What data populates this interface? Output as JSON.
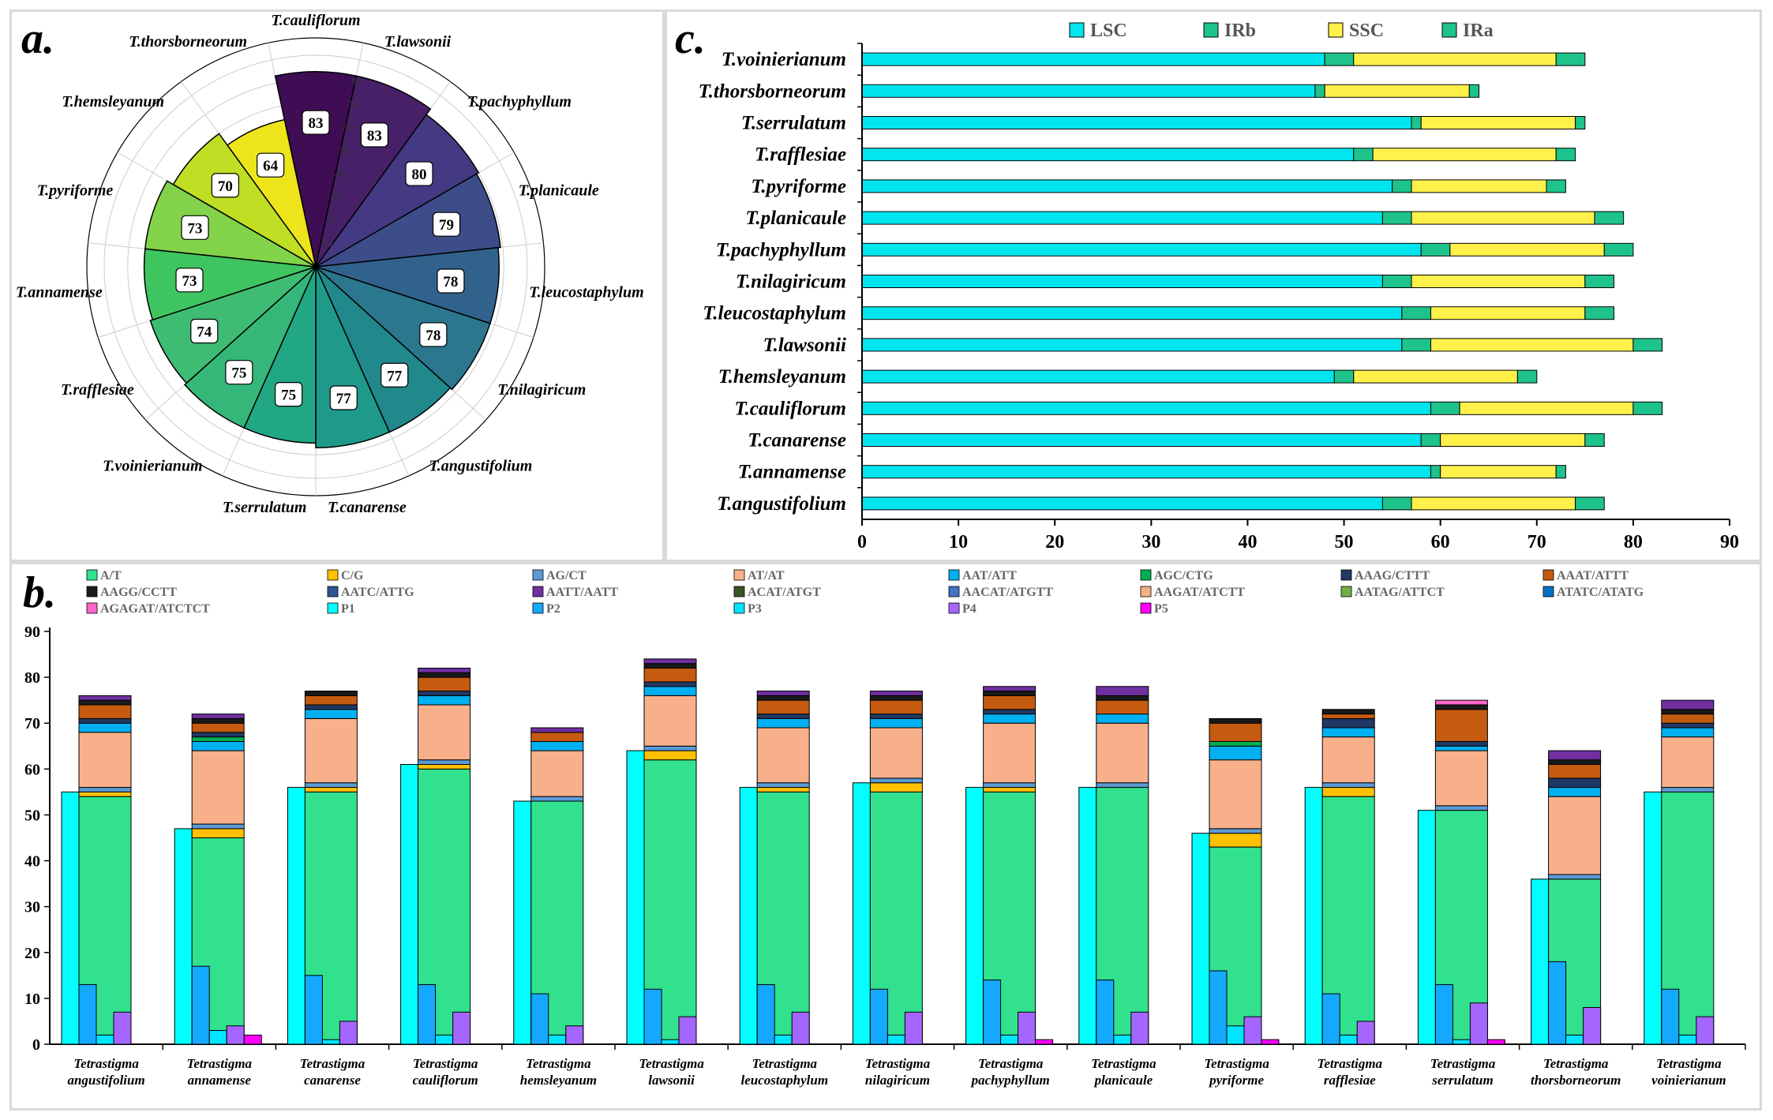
{
  "panel_labels": {
    "a": "a.",
    "b": "b.",
    "c": "c."
  },
  "chart_data": [
    {
      "id": "a",
      "type": "polar-bar",
      "title": "",
      "rlim": [
        0,
        90
      ],
      "radial_ticks": [
        "10",
        "20",
        "30",
        "40",
        "50",
        "60",
        "70",
        "80"
      ],
      "categories": [
        "T.cauliflorum",
        "T.lawsonii",
        "T.pachyphyllum",
        "T.planicaule",
        "T.leucostaphylum",
        "T.nilagiricum",
        "T.angustifolium",
        "T.canarense",
        "T.serrulatum",
        "T.voinierianum",
        "T.rafflesiae",
        "T.annamense",
        "T.pyriforme",
        "T.hemsleyanum",
        "T.thorsborneorum"
      ],
      "values": [
        83,
        83,
        80,
        79,
        78,
        78,
        77,
        77,
        75,
        75,
        74,
        73,
        73,
        70,
        64
      ],
      "colors": [
        "#3f0d54",
        "#462168",
        "#443a83",
        "#3d4d89",
        "#31628c",
        "#2a778e",
        "#21898c",
        "#1f9a8a",
        "#22a785",
        "#35b779",
        "#3fbc73",
        "#3fc560",
        "#82d34a",
        "#c0de24",
        "#ede41c"
      ]
    },
    {
      "id": "b",
      "type": "bar",
      "stacked_middle": true,
      "ylim": [
        0,
        90
      ],
      "yticks": [
        "0",
        "10",
        "20",
        "30",
        "40",
        "50",
        "60",
        "70",
        "80",
        "90"
      ],
      "categories": [
        [
          "Tetrastigma",
          "angustifolium"
        ],
        [
          "Tetrastigma",
          "annamense"
        ],
        [
          "Tetrastigma",
          "canarense"
        ],
        [
          "Tetrastigma",
          "cauliflorum"
        ],
        [
          "Tetrastigma",
          "hemsleyanum"
        ],
        [
          "Tetrastigma",
          "lawsonii"
        ],
        [
          "Tetrastigma",
          "leucostaphylum"
        ],
        [
          "Tetrastigma",
          "nilagiricum"
        ],
        [
          "Tetrastigma",
          "pachyphyllum"
        ],
        [
          "Tetrastigma",
          "planicaule"
        ],
        [
          "Tetrastigma",
          "pyriforme"
        ],
        [
          "Tetrastigma",
          "rafflesiae"
        ],
        [
          "Tetrastigma",
          "serrulatum"
        ],
        [
          "Tetrastigma",
          "thorsborneorum"
        ],
        [
          "Tetrastigma",
          "voinierianum"
        ]
      ],
      "stack_series": [
        {
          "name": "A/T",
          "color": "#31e18e",
          "values": [
            54,
            45,
            55,
            60,
            53,
            62,
            55,
            55,
            55,
            56,
            43,
            54,
            51,
            36,
            55
          ]
        },
        {
          "name": "C/G",
          "color": "#ffc000",
          "values": [
            1,
            2,
            1,
            1,
            0,
            2,
            1,
            2,
            1,
            0,
            3,
            2,
            0,
            0,
            0
          ]
        },
        {
          "name": "AG/CT",
          "color": "#5b9bd5",
          "values": [
            1,
            1,
            1,
            1,
            1,
            1,
            1,
            1,
            1,
            1,
            1,
            1,
            1,
            1,
            1
          ]
        },
        {
          "name": "AT/AT",
          "color": "#f8b08b",
          "values": [
            12,
            16,
            14,
            12,
            10,
            11,
            12,
            11,
            13,
            13,
            15,
            10,
            12,
            17,
            11
          ]
        },
        {
          "name": "AAT/ATT",
          "color": "#00b0f0",
          "values": [
            2,
            2,
            2,
            2,
            2,
            2,
            2,
            2,
            2,
            2,
            3,
            2,
            1,
            2,
            2
          ]
        },
        {
          "name": "AGC/CTG",
          "color": "#00b050",
          "values": [
            0,
            1,
            0,
            0,
            0,
            0,
            0,
            0,
            0,
            0,
            1,
            0,
            0,
            0,
            0
          ]
        },
        {
          "name": "AAAG/CTTT",
          "color": "#203864",
          "values": [
            1,
            1,
            1,
            1,
            0,
            1,
            1,
            1,
            1,
            0,
            0,
            2,
            1,
            2,
            1
          ]
        },
        {
          "name": "AAAT/ATTT",
          "color": "#c55a11",
          "values": [
            3,
            2,
            2,
            3,
            2,
            3,
            3,
            3,
            3,
            3,
            4,
            1,
            7,
            3,
            2
          ]
        },
        {
          "name": "AAGG/CCTT",
          "color": "#1a1a1a",
          "values": [
            1,
            1,
            1,
            1,
            0,
            1,
            1,
            1,
            1,
            1,
            1,
            1,
            1,
            1,
            1
          ]
        },
        {
          "name": "AATC/ATTG",
          "color": "#2f5597",
          "values": [
            0,
            0,
            0,
            0,
            0,
            0,
            0,
            0,
            0,
            0,
            0,
            0,
            0,
            0,
            0
          ]
        },
        {
          "name": "AATT/AATT",
          "color": "#7030a0",
          "values": [
            1,
            1,
            0,
            1,
            1,
            1,
            1,
            1,
            1,
            2,
            0,
            0,
            0,
            2,
            2
          ]
        },
        {
          "name": "ACAT/ATGT",
          "color": "#375623",
          "values": [
            0,
            0,
            0,
            0,
            0,
            0,
            0,
            0,
            0,
            0,
            0,
            0,
            0,
            0,
            0
          ]
        },
        {
          "name": "AACAT/ATGTT",
          "color": "#4472c4",
          "values": [
            0,
            0,
            0,
            0,
            0,
            0,
            0,
            0,
            0,
            0,
            0,
            0,
            0,
            0,
            0
          ]
        },
        {
          "name": "AAGAT/ATCTT",
          "color": "#f4b183",
          "values": [
            0,
            0,
            0,
            0,
            0,
            0,
            0,
            0,
            0,
            0,
            0,
            0,
            0,
            0,
            0
          ]
        },
        {
          "name": "AATAG/ATTCT",
          "color": "#70ad47",
          "values": [
            0,
            0,
            0,
            0,
            0,
            0,
            0,
            0,
            0,
            0,
            0,
            0,
            0,
            0,
            0
          ]
        },
        {
          "name": "ATATC/ATATG",
          "color": "#0070c0",
          "values": [
            0,
            0,
            0,
            0,
            0,
            0,
            0,
            0,
            0,
            0,
            0,
            0,
            0,
            0,
            0
          ]
        },
        {
          "name": "AGAGAT/ATCTCT",
          "color": "#ff66cc",
          "values": [
            0,
            0,
            0,
            0,
            0,
            0,
            0,
            0,
            0,
            0,
            0,
            0,
            1,
            0,
            0
          ]
        }
      ],
      "side_series": [
        {
          "name": "P1",
          "color": "#00ffff",
          "position": "left-tall",
          "values": [
            55,
            47,
            56,
            61,
            53,
            64,
            56,
            57,
            56,
            56,
            46,
            56,
            51,
            36,
            55
          ]
        },
        {
          "name": "P2",
          "color": "#14a9ff",
          "position": "left-short",
          "values": [
            13,
            17,
            15,
            13,
            11,
            12,
            13,
            12,
            14,
            14,
            16,
            11,
            13,
            18,
            12
          ]
        },
        {
          "name": "P3",
          "color": "#00e5ff",
          "position": "middle",
          "values": [
            2,
            3,
            1,
            2,
            2,
            1,
            2,
            2,
            2,
            2,
            4,
            2,
            1,
            2,
            2
          ]
        },
        {
          "name": "P4",
          "color": "#a466ff",
          "position": "right",
          "values": [
            7,
            4,
            5,
            7,
            4,
            6,
            7,
            7,
            7,
            7,
            6,
            5,
            9,
            8,
            6
          ]
        },
        {
          "name": "P5",
          "color": "#ff00ff",
          "position": "right-small",
          "values": [
            0,
            2,
            0,
            0,
            0,
            0,
            0,
            0,
            1,
            0,
            1,
            0,
            1,
            0,
            0
          ]
        }
      ],
      "legend_order": [
        "A/T",
        "C/G",
        "AG/CT",
        "AT/AT",
        "AAT/ATT",
        "AGC/CTG",
        "AAAG/CTTT",
        "AAAT/ATTT",
        "AAGG/CCTT",
        "AATC/ATTG",
        "AATT/AATT",
        "ACAT/ATGT",
        "AACAT/ATGTT",
        "AAGAT/ATCTT",
        "AATAG/ATTCT",
        "ATATC/ATATG",
        "AGAGAT/ATCTCT",
        "P1",
        "P2",
        "P3",
        "P4",
        "P5"
      ],
      "legend_position": "top"
    },
    {
      "id": "c",
      "type": "bar-horizontal-stacked",
      "xlim": [
        0,
        90
      ],
      "xticks": [
        "0",
        "10",
        "20",
        "30",
        "40",
        "50",
        "60",
        "70",
        "80",
        "90"
      ],
      "categories": [
        "T.voinierianum",
        "T.thorsborneorum",
        "T.serrulatum",
        "T.rafflesiae",
        "T.pyriforme",
        "T.planicaule",
        "T.pachyphyllum",
        "T.nilagiricum",
        "T.leucostaphylum",
        "T.lawsonii",
        "T.hemsleyanum",
        "T.cauliflorum",
        "T.canarense",
        "T.annamense",
        "T.angustifolium"
      ],
      "series": [
        {
          "name": "LSC",
          "color": "#00e5ee",
          "values": [
            48,
            47,
            57,
            51,
            55,
            54,
            58,
            54,
            56,
            56,
            49,
            59,
            58,
            59,
            54
          ]
        },
        {
          "name": "IRb",
          "color": "#1ec38c",
          "values": [
            3,
            1,
            1,
            2,
            2,
            3,
            3,
            3,
            3,
            3,
            2,
            3,
            2,
            1,
            3
          ]
        },
        {
          "name": "SSC",
          "color": "#fff04a",
          "values": [
            21,
            15,
            16,
            19,
            14,
            19,
            16,
            18,
            16,
            21,
            17,
            18,
            15,
            12,
            17
          ]
        },
        {
          "name": "IRa",
          "color": "#1ec38c",
          "values": [
            3,
            1,
            1,
            2,
            2,
            3,
            3,
            3,
            3,
            3,
            2,
            3,
            2,
            1,
            3
          ]
        }
      ],
      "legend_position": "top"
    }
  ]
}
